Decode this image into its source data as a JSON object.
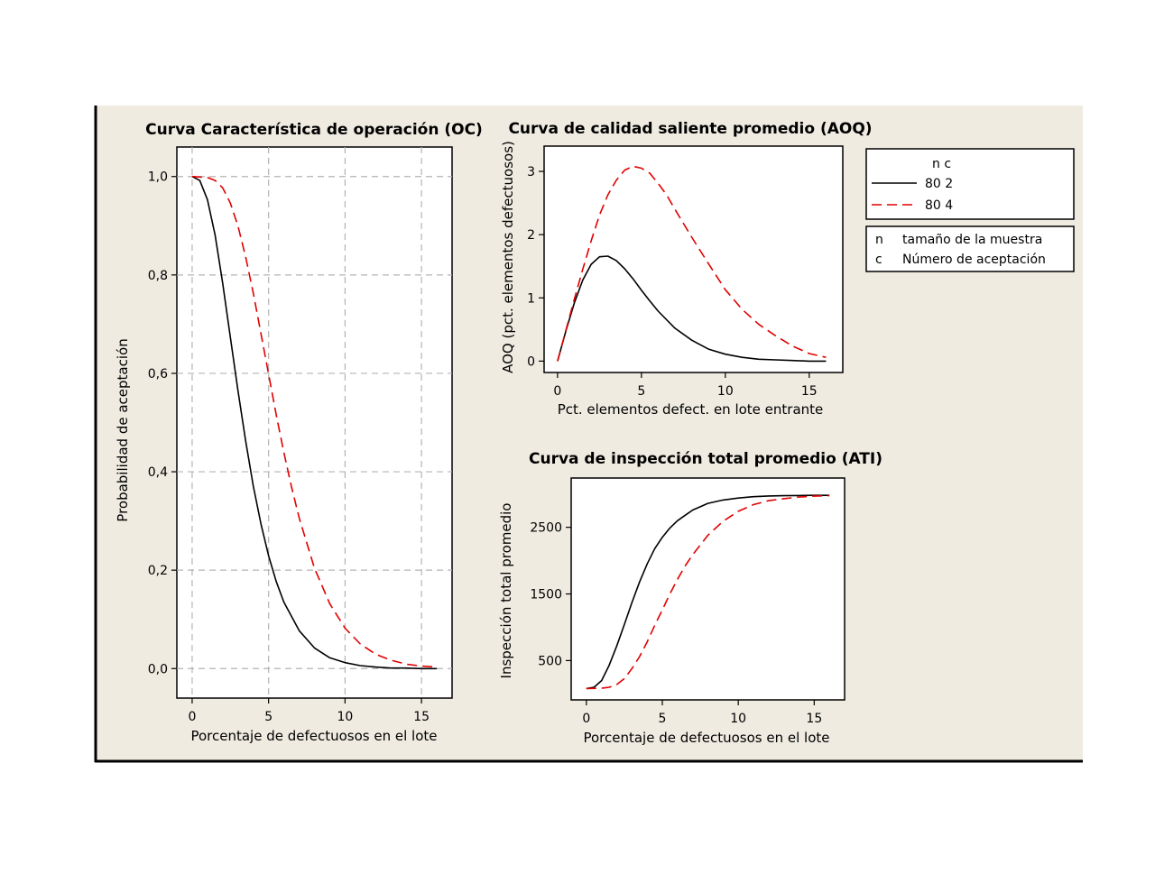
{
  "colors": {
    "panel_bg": "#efebe1",
    "plot_bg": "#ffffff",
    "grid": "#b4b4b4",
    "series_1": "#000000",
    "series_2": "#e00000"
  },
  "legend": {
    "header": "n  c",
    "entries": [
      {
        "label": "80  2",
        "color": "#000000",
        "dash": "solid"
      },
      {
        "label": "80  4",
        "color": "#e00000",
        "dash": "dashed"
      }
    ],
    "key": [
      {
        "symbol": "n",
        "text": "tamaño de la muestra"
      },
      {
        "symbol": "c",
        "text": "Número de aceptación"
      }
    ]
  },
  "chart_data": [
    {
      "type": "line",
      "title": "Curva Característica de operación (OC)",
      "xlabel": "Porcentaje de defectuosos en el lote",
      "ylabel": "Probabilidad de aceptación",
      "xlim": [
        -1,
        17
      ],
      "ylim": [
        -0.06,
        1.06
      ],
      "grid": true,
      "xticks": [
        0,
        5,
        10,
        15
      ],
      "xtick_labels": [
        "0",
        "5",
        "10",
        "15"
      ],
      "yticks": [
        0,
        0.2,
        0.4,
        0.6,
        0.8,
        1.0
      ],
      "ytick_labels": [
        "0,0",
        "0,2",
        "0,4",
        "0,6",
        "0,8",
        "1,0"
      ],
      "series": [
        {
          "legend": "80  2",
          "dash": "solid",
          "x": [
            0,
            0.5,
            1,
            1.5,
            2,
            2.5,
            3,
            3.5,
            4,
            4.5,
            5,
            5.5,
            6,
            7,
            8,
            9,
            10,
            11,
            12,
            13,
            14,
            15,
            16
          ],
          "y": [
            1.0,
            0.992,
            0.953,
            0.881,
            0.783,
            0.673,
            0.564,
            0.462,
            0.371,
            0.294,
            0.229,
            0.177,
            0.135,
            0.077,
            0.042,
            0.022,
            0.012,
            0.006,
            0.003,
            0.001,
            0.001,
            0.0,
            0.0
          ]
        },
        {
          "legend": "80  4",
          "dash": "dashed",
          "x": [
            0,
            1,
            1.5,
            2,
            2.5,
            3,
            3.5,
            4,
            4.5,
            5,
            5.5,
            6,
            6.5,
            7,
            8,
            9,
            10,
            11,
            12,
            13,
            14,
            15,
            16
          ],
          "y": [
            1.0,
            0.998,
            0.992,
            0.977,
            0.946,
            0.899,
            0.836,
            0.763,
            0.681,
            0.598,
            0.516,
            0.439,
            0.369,
            0.306,
            0.204,
            0.132,
            0.082,
            0.05,
            0.029,
            0.017,
            0.009,
            0.005,
            0.003
          ]
        }
      ]
    },
    {
      "type": "line",
      "title": "Curva de calidad saliente promedio (AOQ)",
      "xlabel": "Pct. elementos defect. en lote entrante",
      "ylabel": "AOQ (pct. elementos defectuosos)",
      "xlim": [
        -0.8,
        17
      ],
      "ylim": [
        -0.18,
        3.4
      ],
      "grid": false,
      "xticks": [
        0,
        5,
        10,
        15
      ],
      "xtick_labels": [
        "0",
        "5",
        "10",
        "15"
      ],
      "yticks": [
        0,
        1,
        2,
        3
      ],
      "ytick_labels": [
        "0",
        "1",
        "2",
        "3"
      ],
      "series": [
        {
          "legend": "80  2",
          "dash": "solid",
          "x": [
            0,
            0.5,
            1,
            1.5,
            2,
            2.5,
            3,
            3.5,
            4,
            4.5,
            5,
            5.5,
            6,
            7,
            8,
            9,
            10,
            11,
            12,
            13,
            14,
            15,
            16
          ],
          "y": [
            0,
            0.48,
            0.92,
            1.28,
            1.53,
            1.65,
            1.66,
            1.59,
            1.46,
            1.3,
            1.12,
            0.95,
            0.79,
            0.52,
            0.33,
            0.19,
            0.11,
            0.06,
            0.03,
            0.02,
            0.01,
            0.0,
            0.0
          ]
        },
        {
          "legend": "80  4",
          "dash": "dashed",
          "x": [
            0,
            0.5,
            1,
            1.5,
            2,
            2.5,
            3,
            3.5,
            4,
            4.5,
            5,
            5.5,
            6,
            6.5,
            7,
            8,
            9,
            10,
            11,
            12,
            13,
            14,
            15,
            16
          ],
          "y": [
            0,
            0.49,
            0.98,
            1.45,
            1.9,
            2.31,
            2.63,
            2.86,
            3.02,
            3.08,
            3.05,
            2.97,
            2.81,
            2.63,
            2.4,
            1.96,
            1.54,
            1.13,
            0.82,
            0.58,
            0.4,
            0.24,
            0.12,
            0.06
          ]
        }
      ]
    },
    {
      "type": "line",
      "title": "Curva de inspección total promedio (ATI)",
      "xlabel": "Porcentaje de defectuosos en el lote",
      "ylabel": "Inspección total promedio",
      "xlim": [
        -1,
        17
      ],
      "ylim": [
        -90,
        3240
      ],
      "grid": false,
      "xticks": [
        0,
        5,
        10,
        15
      ],
      "xtick_labels": [
        "0",
        "5",
        "10",
        "15"
      ],
      "yticks": [
        500,
        1500,
        2500
      ],
      "ytick_labels": [
        "500",
        "1500",
        "2500"
      ],
      "series": [
        {
          "legend": "80  2",
          "dash": "solid",
          "x": [
            0,
            0.5,
            1,
            1.5,
            2,
            2.5,
            3,
            3.5,
            4,
            4.5,
            5,
            5.5,
            6,
            7,
            8,
            9,
            10,
            11,
            12,
            13,
            14,
            15,
            16
          ],
          "y": [
            80,
            100,
            200,
            430,
            720,
            1040,
            1370,
            1680,
            1950,
            2180,
            2350,
            2490,
            2600,
            2760,
            2860,
            2910,
            2940,
            2960,
            2970,
            2975,
            2978,
            2980,
            2980
          ]
        },
        {
          "legend": "80  4",
          "dash": "dashed",
          "x": [
            0,
            1,
            1.5,
            2,
            2.5,
            3,
            3.5,
            4,
            4.5,
            5,
            5.5,
            6,
            6.5,
            7,
            8,
            9,
            10,
            11,
            12,
            13,
            14,
            15,
            16
          ],
          "y": [
            80,
            85,
            100,
            140,
            230,
            380,
            560,
            780,
            1030,
            1260,
            1500,
            1720,
            1920,
            2090,
            2380,
            2590,
            2740,
            2840,
            2900,
            2930,
            2955,
            2968,
            2975
          ]
        }
      ]
    }
  ]
}
